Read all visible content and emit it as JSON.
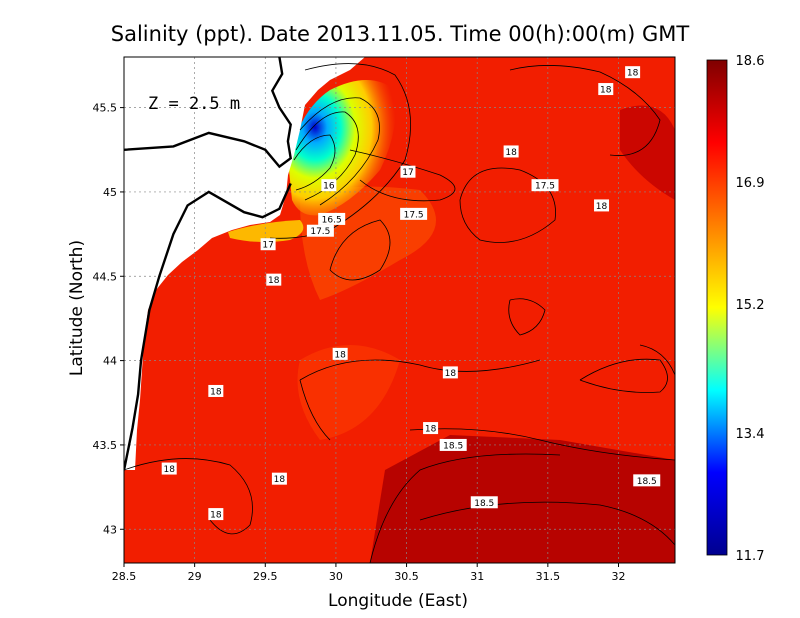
{
  "chart_data": {
    "type": "heatmap",
    "title": "Salinity (ppt). Date 2013.11.05. Time 00(h):00(m) GMT",
    "xlabel": "Longitude (East)",
    "ylabel": "Latitude (North)",
    "annotation": "Z = 2.5 m",
    "xlim": [
      28.5,
      32.4
    ],
    "ylim": [
      42.8,
      45.8
    ],
    "x_ticks": [
      {
        "value": 28.5,
        "label": "28.5"
      },
      {
        "value": 29,
        "label": "29"
      },
      {
        "value": 29.5,
        "label": "29.5"
      },
      {
        "value": 30,
        "label": "30"
      },
      {
        "value": 30.5,
        "label": "30.5"
      },
      {
        "value": 31,
        "label": "31"
      },
      {
        "value": 31.5,
        "label": "31.5"
      },
      {
        "value": 32,
        "label": "32"
      }
    ],
    "y_ticks": [
      {
        "value": 43,
        "label": "43"
      },
      {
        "value": 43.5,
        "label": "43.5"
      },
      {
        "value": 44,
        "label": "44"
      },
      {
        "value": 44.5,
        "label": "44.5"
      },
      {
        "value": 45,
        "label": "45"
      },
      {
        "value": 45.5,
        "label": "45.5"
      }
    ],
    "grid": true,
    "colorbar": {
      "min": 11.7,
      "max": 18.6,
      "ticks": [
        {
          "value": 18.6,
          "label": "18.6"
        },
        {
          "value": 16.9,
          "label": "16.9"
        },
        {
          "value": 15.2,
          "label": "15.2"
        },
        {
          "value": 13.4,
          "label": "13.4"
        },
        {
          "value": 11.7,
          "label": "11.7"
        }
      ],
      "colors": [
        "#00008f",
        "#0000ff",
        "#00ffff",
        "#ffff00",
        "#ff7f00",
        "#ff0000",
        "#7f0000"
      ]
    },
    "contour_labels": [
      {
        "lon": 32.1,
        "lat": 45.71,
        "label": "18"
      },
      {
        "lon": 31.91,
        "lat": 45.61,
        "label": "18"
      },
      {
        "lon": 31.24,
        "lat": 45.24,
        "label": "18"
      },
      {
        "lon": 31.48,
        "lat": 45.04,
        "label": "17.5"
      },
      {
        "lon": 31.88,
        "lat": 44.92,
        "label": "18"
      },
      {
        "lon": 30.51,
        "lat": 45.12,
        "label": "17"
      },
      {
        "lon": 30.55,
        "lat": 44.87,
        "label": "17.5"
      },
      {
        "lon": 29.95,
        "lat": 45.04,
        "label": "16"
      },
      {
        "lon": 29.97,
        "lat": 44.84,
        "label": "16.5"
      },
      {
        "lon": 29.89,
        "lat": 44.77,
        "label": "17.5"
      },
      {
        "lon": 29.52,
        "lat": 44.69,
        "label": "17"
      },
      {
        "lon": 29.56,
        "lat": 44.48,
        "label": "18"
      },
      {
        "lon": 30.03,
        "lat": 44.04,
        "label": "18"
      },
      {
        "lon": 30.81,
        "lat": 43.93,
        "label": "18"
      },
      {
        "lon": 29.15,
        "lat": 43.82,
        "label": "18"
      },
      {
        "lon": 30.67,
        "lat": 43.6,
        "label": "18"
      },
      {
        "lon": 30.83,
        "lat": 43.5,
        "label": "18.5"
      },
      {
        "lon": 28.82,
        "lat": 43.36,
        "label": "18"
      },
      {
        "lon": 29.6,
        "lat": 43.3,
        "label": "18"
      },
      {
        "lon": 32.2,
        "lat": 43.29,
        "label": "18.5"
      },
      {
        "lon": 31.05,
        "lat": 43.16,
        "label": "18.5"
      },
      {
        "lon": 29.15,
        "lat": 43.09,
        "label": "18"
      }
    ],
    "coastline": [
      [
        29.6,
        45.8
      ],
      [
        29.62,
        45.7
      ],
      [
        29.55,
        45.6
      ],
      [
        29.6,
        45.5
      ],
      [
        29.68,
        45.4
      ],
      [
        29.66,
        45.3
      ],
      [
        29.68,
        45.2
      ],
      [
        29.6,
        45.15
      ],
      [
        29.5,
        45.25
      ],
      [
        29.35,
        45.3
      ],
      [
        29.1,
        45.35
      ],
      [
        28.85,
        45.27
      ],
      [
        28.5,
        45.25
      ]
    ],
    "coastline_west": [
      [
        29.68,
        45.05
      ],
      [
        29.6,
        44.9
      ],
      [
        29.48,
        44.85
      ],
      [
        29.35,
        44.88
      ],
      [
        29.1,
        45.0
      ],
      [
        28.95,
        44.92
      ],
      [
        28.85,
        44.75
      ],
      [
        28.75,
        44.5
      ],
      [
        28.68,
        44.3
      ],
      [
        28.62,
        44.0
      ],
      [
        28.6,
        43.8
      ],
      [
        28.56,
        43.6
      ],
      [
        28.5,
        43.35
      ]
    ]
  }
}
